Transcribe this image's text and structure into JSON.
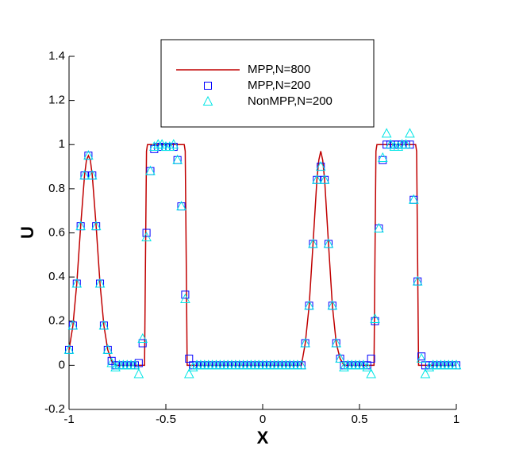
{
  "chart_data": {
    "type": "line",
    "xlabel": "X",
    "ylabel": "U",
    "xlim": [
      -1,
      1
    ],
    "xticks": [
      -1,
      -0.5,
      0,
      0.5,
      1
    ],
    "ylim": [
      -0.2,
      1.4
    ],
    "yticks": [
      -0.2,
      0,
      0.2,
      0.4,
      0.6,
      0.8,
      1,
      1.2,
      1.4
    ],
    "series": [
      {
        "name": "MPP,N=800",
        "style": "line",
        "color": "#c00000",
        "x": [
          -1,
          -0.98,
          -0.96,
          -0.94,
          -0.92,
          -0.91,
          -0.9,
          -0.89,
          -0.88,
          -0.86,
          -0.84,
          -0.82,
          -0.8,
          -0.78,
          -0.76,
          -0.61,
          -0.605,
          -0.6,
          -0.595,
          -0.405,
          -0.4,
          -0.395,
          -0.39,
          0.2,
          0.22,
          0.24,
          0.26,
          0.28,
          0.29,
          0.3,
          0.31,
          0.32,
          0.34,
          0.36,
          0.38,
          0.4,
          0.42,
          0.575,
          0.58,
          0.585,
          0.59,
          0.79,
          0.795,
          0.8,
          0.805,
          1
        ],
        "values": [
          0.07,
          0.18,
          0.37,
          0.63,
          0.86,
          0.93,
          0.95,
          0.93,
          0.86,
          0.63,
          0.37,
          0.18,
          0.07,
          0.02,
          0,
          0,
          0.5,
          0.97,
          1,
          1,
          0.97,
          0.5,
          0,
          0,
          0.1,
          0.27,
          0.55,
          0.84,
          0.93,
          0.97,
          0.93,
          0.84,
          0.55,
          0.27,
          0.1,
          0.03,
          0,
          0,
          0.5,
          0.97,
          1,
          1,
          0.97,
          0.5,
          0,
          0
        ]
      },
      {
        "name": "MPP,N=200",
        "style": "square",
        "color": "#0000ff",
        "x": [
          -1,
          -0.98,
          -0.96,
          -0.94,
          -0.92,
          -0.9,
          -0.88,
          -0.86,
          -0.84,
          -0.82,
          -0.8,
          -0.78,
          -0.76,
          -0.74,
          -0.72,
          -0.7,
          -0.68,
          -0.66,
          -0.64,
          -0.62,
          -0.6,
          -0.58,
          -0.56,
          -0.54,
          -0.52,
          -0.5,
          -0.48,
          -0.46,
          -0.44,
          -0.42,
          -0.4,
          -0.38,
          -0.36,
          -0.34,
          -0.32,
          -0.3,
          -0.28,
          -0.26,
          -0.24,
          -0.22,
          -0.2,
          -0.18,
          -0.16,
          -0.14,
          -0.12,
          -0.1,
          -0.08,
          -0.06,
          -0.04,
          -0.02,
          0,
          0.02,
          0.04,
          0.06,
          0.08,
          0.1,
          0.12,
          0.14,
          0.16,
          0.18,
          0.2,
          0.22,
          0.24,
          0.26,
          0.28,
          0.3,
          0.32,
          0.34,
          0.36,
          0.38,
          0.4,
          0.42,
          0.44,
          0.46,
          0.48,
          0.5,
          0.52,
          0.54,
          0.56,
          0.58,
          0.6,
          0.62,
          0.64,
          0.66,
          0.68,
          0.7,
          0.72,
          0.74,
          0.76,
          0.78,
          0.8,
          0.82,
          0.84,
          0.86,
          0.88,
          0.9,
          0.92,
          0.94,
          0.96,
          0.98,
          1
        ],
        "values": [
          0.07,
          0.18,
          0.37,
          0.63,
          0.86,
          0.95,
          0.86,
          0.63,
          0.37,
          0.18,
          0.07,
          0.02,
          0,
          0,
          0,
          0,
          0,
          0,
          0.01,
          0.1,
          0.6,
          0.88,
          0.98,
          0.99,
          0.99,
          0.99,
          0.99,
          0.99,
          0.93,
          0.72,
          0.32,
          0.03,
          0,
          0,
          0,
          0,
          0,
          0,
          0,
          0,
          0,
          0,
          0,
          0,
          0,
          0,
          0,
          0,
          0,
          0,
          0,
          0,
          0,
          0,
          0,
          0,
          0,
          0,
          0,
          0,
          0,
          0.1,
          0.27,
          0.55,
          0.84,
          0.9,
          0.84,
          0.55,
          0.27,
          0.1,
          0.03,
          0,
          0,
          0,
          0,
          0,
          0,
          0,
          0.03,
          0.2,
          0.62,
          0.93,
          1,
          1,
          1,
          1,
          1,
          1,
          1,
          0.75,
          0.38,
          0.04,
          0,
          0,
          0,
          0,
          0,
          0,
          0,
          0,
          0
        ]
      },
      {
        "name": "NonMPP,N=200",
        "style": "triangle",
        "color": "#00e5e5",
        "x": [
          -1,
          -0.98,
          -0.96,
          -0.94,
          -0.92,
          -0.9,
          -0.88,
          -0.86,
          -0.84,
          -0.82,
          -0.8,
          -0.78,
          -0.76,
          -0.74,
          -0.72,
          -0.7,
          -0.68,
          -0.66,
          -0.64,
          -0.62,
          -0.6,
          -0.58,
          -0.56,
          -0.54,
          -0.52,
          -0.5,
          -0.48,
          -0.46,
          -0.44,
          -0.42,
          -0.4,
          -0.38,
          -0.36,
          -0.34,
          -0.32,
          -0.3,
          -0.28,
          -0.26,
          -0.24,
          -0.22,
          -0.2,
          -0.18,
          -0.16,
          -0.14,
          -0.12,
          -0.1,
          -0.08,
          -0.06,
          -0.04,
          -0.02,
          0,
          0.02,
          0.04,
          0.06,
          0.08,
          0.1,
          0.12,
          0.14,
          0.16,
          0.18,
          0.2,
          0.22,
          0.24,
          0.26,
          0.28,
          0.3,
          0.32,
          0.34,
          0.36,
          0.38,
          0.4,
          0.42,
          0.44,
          0.46,
          0.48,
          0.5,
          0.52,
          0.54,
          0.56,
          0.58,
          0.6,
          0.62,
          0.64,
          0.66,
          0.68,
          0.7,
          0.72,
          0.74,
          0.76,
          0.78,
          0.8,
          0.82,
          0.84,
          0.86,
          0.88,
          0.9,
          0.92,
          0.94,
          0.96,
          0.98,
          1
        ],
        "values": [
          0.07,
          0.18,
          0.37,
          0.63,
          0.86,
          0.95,
          0.86,
          0.63,
          0.37,
          0.18,
          0.07,
          0.01,
          -0.01,
          0,
          0,
          0,
          0,
          0,
          -0.04,
          0.12,
          0.58,
          0.88,
          0.99,
          1,
          1,
          0.99,
          0.99,
          1,
          0.93,
          0.72,
          0.3,
          -0.04,
          -0.01,
          0,
          0,
          0,
          0,
          0,
          0,
          0,
          0,
          0,
          0,
          0,
          0,
          0,
          0,
          0,
          0,
          0,
          0,
          0,
          0,
          0,
          0,
          0,
          0,
          0,
          0,
          0,
          0,
          0.1,
          0.27,
          0.55,
          0.84,
          0.9,
          0.84,
          0.55,
          0.27,
          0.1,
          0.03,
          -0.01,
          0,
          0,
          0,
          0,
          0,
          -0.01,
          -0.04,
          0.21,
          0.62,
          0.94,
          1.05,
          1,
          0.99,
          0.99,
          1,
          1,
          1.05,
          0.75,
          0.38,
          0.03,
          -0.04,
          -0.01,
          0,
          0,
          0,
          0,
          0,
          0,
          0
        ]
      }
    ]
  }
}
